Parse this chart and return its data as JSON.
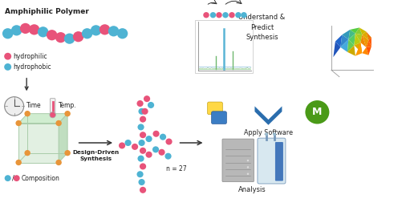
{
  "bg_color": "#ffffff",
  "pink": "#E8537A",
  "blue": "#4EB3D3",
  "orange": "#E8953A",
  "dark_blue": "#2A6DAD",
  "green_m": "#4A9A18",
  "text_color": "#222222",
  "arrow_color": "#333333",
  "cube_face_color": "#E2F0E2",
  "cube_edge_color": "#AACCAA",
  "label_amphiphilic": "Amphiphilic Polymer",
  "label_hydrophilic": "hydrophilic",
  "label_hydrophobic": "hydrophobic",
  "label_time": "Time",
  "label_temp": "Temp.",
  "label_composition": "Composition",
  "label_design": "Design-Driven\nSynthesis",
  "label_n27": "n = 27",
  "label_analysis": "Analysis",
  "label_understand": "Understand &\nPredict\nSynthesis",
  "label_software": "Apply Software"
}
